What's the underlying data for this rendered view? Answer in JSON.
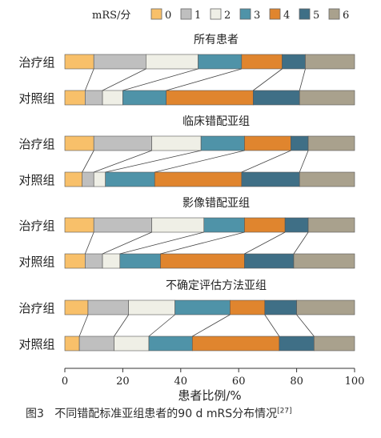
{
  "chart_data": {
    "type": "bar",
    "orientation": "horizontal",
    "stacked": true,
    "legend": {
      "title": "mRS/分",
      "placement": "top",
      "categories": [
        "0",
        "1",
        "2",
        "3",
        "4",
        "5",
        "6"
      ],
      "colors": [
        "#f8c06a",
        "#bfbfbf",
        "#efefe6",
        "#4f93a8",
        "#e0852e",
        "#3f6f86",
        "#a9a18d"
      ]
    },
    "xlabel": "患者比例/%",
    "xlim": [
      0,
      100
    ],
    "xticks": [
      "0",
      "20",
      "40",
      "60",
      "80",
      "100"
    ],
    "groups": [
      {
        "title": "所有患者",
        "rows": [
          {
            "label": "治疗组",
            "values": [
              10,
              18,
              18,
              15,
              14,
              8,
              17
            ]
          },
          {
            "label": "对照组",
            "values": [
              7,
              6,
              7,
              15,
              30,
              16,
              19
            ]
          }
        ]
      },
      {
        "title": "临床错配亚组",
        "rows": [
          {
            "label": "治疗组",
            "values": [
              10,
              20,
              17,
              15,
              16,
              6,
              16
            ]
          },
          {
            "label": "对照组",
            "values": [
              6,
              4,
              4,
              17,
              30,
              20,
              19
            ]
          }
        ]
      },
      {
        "title": "影像错配亚组",
        "rows": [
          {
            "label": "治疗组",
            "values": [
              10,
              20,
              18,
              14,
              14,
              8,
              16
            ]
          },
          {
            "label": "对照组",
            "values": [
              7,
              6,
              6,
              14,
              29,
              17,
              21
            ]
          }
        ]
      },
      {
        "title": "不确定评估方法亚组",
        "rows": [
          {
            "label": "治疗组",
            "values": [
              8,
              14,
              16,
              19,
              12,
              11,
              20
            ]
          },
          {
            "label": "对照组",
            "values": [
              5,
              12,
              12,
              15,
              30,
              12,
              14
            ]
          }
        ]
      }
    ]
  },
  "caption": {
    "prefix": "图3",
    "text": "不同错配标准亚组患者的90 d mRS分布情况",
    "ref": "[27]"
  }
}
